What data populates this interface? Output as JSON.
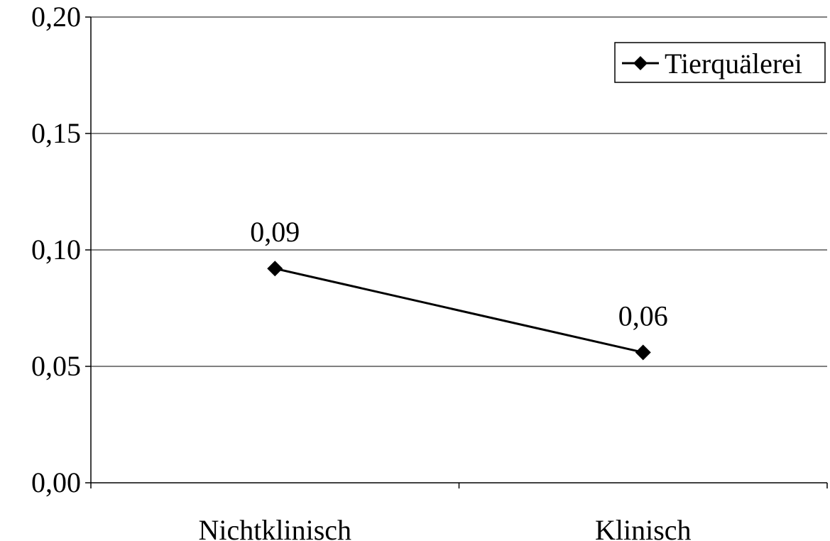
{
  "chart_data": {
    "type": "line",
    "categories": [
      "Nichtklinisch",
      "Klinisch"
    ],
    "series": [
      {
        "name": "Tierquälerei",
        "values": [
          0.092,
          0.056
        ],
        "data_labels": [
          "0,09",
          "0,06"
        ],
        "color": "#000000",
        "marker": "diamond"
      }
    ],
    "ylim": [
      0,
      0.2
    ],
    "yticks": [
      0,
      0.05,
      0.1,
      0.15,
      0.2
    ],
    "ytick_labels": [
      "0,00",
      "0,05",
      "0,10",
      "0,15",
      "0,20"
    ],
    "title": "",
    "xlabel": "",
    "ylabel": "",
    "grid": true,
    "legend_position": "top-right"
  }
}
